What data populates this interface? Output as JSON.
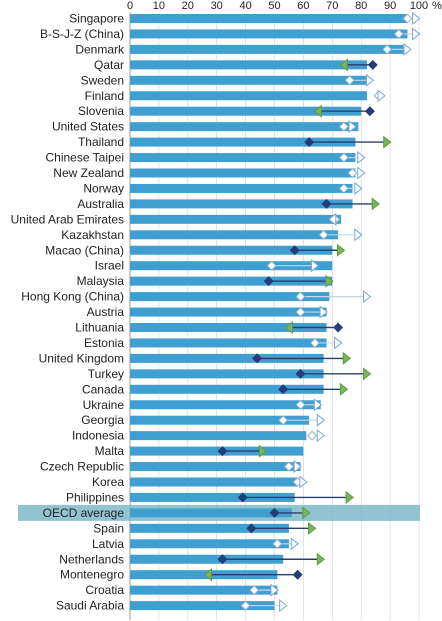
{
  "chart_data": {
    "type": "bar",
    "orientation": "horizontal",
    "xlim": [
      0,
      100
    ],
    "x_ticks": [
      "0",
      "10",
      "20",
      "30",
      "40",
      "50",
      "60",
      "70",
      "80",
      "90",
      "100"
    ],
    "x_unit": "%",
    "ticks_position": "top",
    "grid": true,
    "legend": "none",
    "highlight_category": "OECD average",
    "colors": {
      "bar": "#3f9fd1",
      "highlight_band": "#7fb8c8",
      "line_dark": "#2a3f6e",
      "marker_diamond_dark": "#253c78",
      "marker_diamond_light": "#ffffff",
      "marker_triangle_green": "#7ab55c",
      "marker_triangle_light": "#ffffff",
      "grid": "#d0d0d0"
    },
    "categories": [
      "Singapore",
      "B-S-J-Z (China)",
      "Denmark",
      "Qatar",
      "Sweden",
      "Finland",
      "Slovenia",
      "United States",
      "Thailand",
      "Chinese Taipei",
      "New Zealand",
      "Norway",
      "Australia",
      "United Arab Emirates",
      "Kazakhstan",
      "Macao (China)",
      "Israel",
      "Malaysia",
      "Hong Kong (China)",
      "Austria",
      "Lithuania",
      "Estonia",
      "United Kingdom",
      "Turkey",
      "Canada",
      "Ukraine",
      "Georgia",
      "Indonesia",
      "Malta",
      "Czech Republic",
      "Korea",
      "Philippines",
      "OECD average",
      "Spain",
      "Latvia",
      "Netherlands",
      "Montenegro",
      "Croatia",
      "Saudi Arabia"
    ],
    "bar_values": [
      96,
      96,
      95,
      82,
      82,
      82,
      80,
      79,
      78,
      78,
      78,
      77,
      77,
      73,
      72,
      70,
      70,
      70,
      69,
      68,
      68,
      68,
      67,
      67,
      67,
      66,
      62,
      61,
      60,
      59,
      58,
      57,
      56,
      55,
      55,
      53,
      51,
      51,
      50
    ],
    "start_values": [
      96,
      93,
      89,
      84,
      76,
      86,
      83,
      74,
      62,
      74,
      77,
      74,
      68,
      71,
      67,
      57,
      49,
      48,
      59,
      59,
      72,
      64,
      44,
      59,
      53,
      59,
      53,
      63,
      32,
      55,
      58,
      39,
      50,
      42,
      51,
      32,
      58,
      43,
      40
    ],
    "end_values": [
      99,
      99,
      96,
      74,
      83,
      87,
      65,
      77,
      89,
      80,
      80,
      79,
      85,
      70,
      79,
      73,
      64,
      69,
      82,
      67,
      55,
      72,
      75,
      82,
      74,
      65,
      66,
      66,
      46,
      58,
      60,
      76,
      61,
      63,
      57,
      66,
      27,
      50,
      53
    ],
    "start_markers": [
      "light",
      "light",
      "light",
      "dark",
      "light",
      "light",
      "dark",
      "light",
      "dark",
      "light",
      "light",
      "light",
      "dark",
      "light",
      "light",
      "dark",
      "light",
      "dark",
      "light",
      "light",
      "dark",
      "light",
      "dark",
      "dark",
      "dark",
      "light",
      "light",
      "light",
      "dark",
      "light",
      "light",
      "dark",
      "dark",
      "dark",
      "light",
      "dark",
      "dark",
      "light",
      "light"
    ],
    "end_markers": [
      "light",
      "light",
      "light",
      "green",
      "light",
      "light",
      "green",
      "light",
      "green",
      "light",
      "light",
      "light",
      "green",
      "light",
      "light",
      "green",
      "light",
      "green",
      "light",
      "light",
      "green",
      "light",
      "green",
      "green",
      "green",
      "light",
      "light",
      "light",
      "green",
      "light",
      "light",
      "green",
      "green",
      "green",
      "light",
      "green",
      "green",
      "light",
      "light"
    ]
  }
}
